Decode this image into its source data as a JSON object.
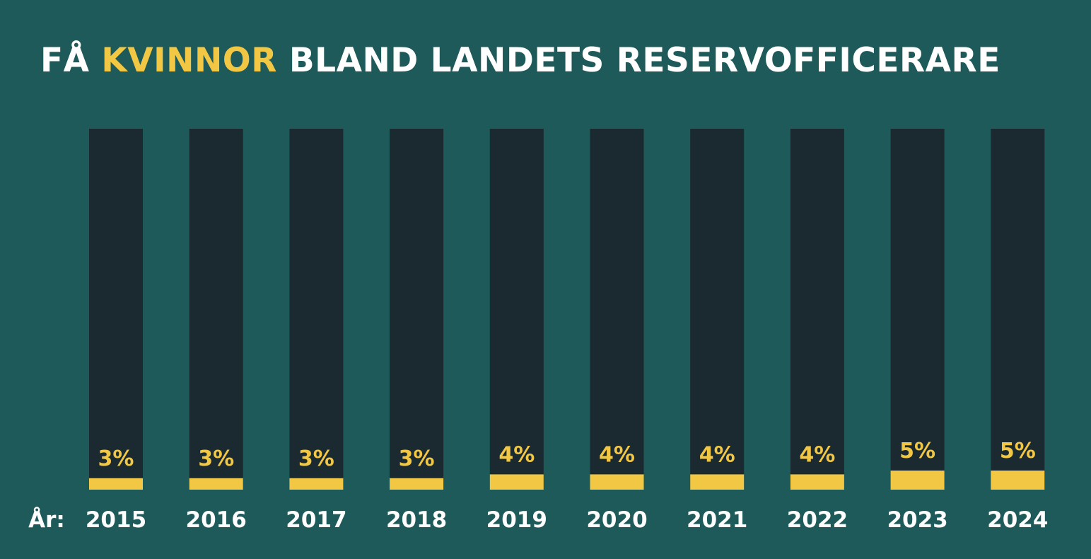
{
  "title": {
    "part1": "FÅ ",
    "highlight": "KVINNOR",
    "part2": " BLAND LANDETS RESERVOFFICERARE"
  },
  "colors": {
    "background": "#1d5a59",
    "bar_track": "#1b2a30",
    "bar_fill": "#f2c744",
    "text": "#ffffff",
    "accent": "#f2c744"
  },
  "chart_data": {
    "type": "bar",
    "title": "FÅ KVINNOR BLAND LANDETS RESERVOFFICERARE",
    "xlabel": "År:",
    "ylabel": "",
    "categories": [
      "2015",
      "2016",
      "2017",
      "2018",
      "2019",
      "2020",
      "2021",
      "2022",
      "2023",
      "2024"
    ],
    "values": [
      3,
      3,
      3,
      3,
      4,
      4,
      4,
      4,
      5,
      5
    ],
    "value_labels": [
      "3%",
      "3%",
      "3%",
      "3%",
      "4%",
      "4%",
      "4%",
      "4%",
      "5%",
      "5%"
    ],
    "ylim": [
      0,
      100
    ],
    "unit": "%",
    "grid": false
  }
}
